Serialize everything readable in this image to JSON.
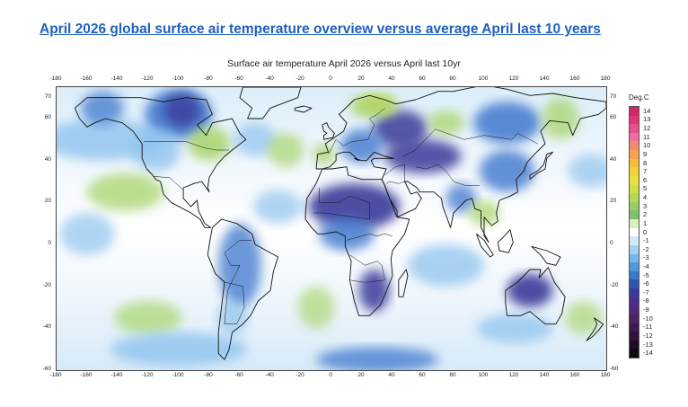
{
  "page_title": "April 2026 global surface air temperature overview versus average April last 10 years",
  "map": {
    "title": "Surface air temperature April 2026 versus April last 10yr",
    "lon_ticks": [
      "-180",
      "-160",
      "-140",
      "-120",
      "-100",
      "-80",
      "-60",
      "-40",
      "-20",
      "0",
      "20",
      "40",
      "60",
      "80",
      "100",
      "120",
      "140",
      "160",
      "180"
    ],
    "lat_ticks": [
      "70",
      "60",
      "40",
      "20",
      "0",
      "-20",
      "-40",
      "-60"
    ],
    "lat_values": [
      70,
      60,
      40,
      20,
      0,
      -20,
      -40,
      -60
    ],
    "lon_range": [
      -180,
      180
    ],
    "lat_range": [
      -60,
      75
    ],
    "colors": {
      "strong_cold": "#3a3a9a",
      "cold": "#4a7fd0",
      "cool": "#8fc3ee",
      "neutral": "#ffffff",
      "warm": "#a8d46a",
      "hot": "#e2e34a",
      "coast": "#111111"
    }
  },
  "legend": {
    "title": "Deg.C",
    "labels": [
      "14",
      "13",
      "12",
      "11",
      "10",
      "9",
      "8",
      "7",
      "6",
      "5",
      "4",
      "3",
      "2",
      "1",
      "0",
      "-1",
      "-2",
      "-3",
      "-4",
      "-5",
      "-6",
      "-7",
      "-8",
      "-9",
      "-10",
      "-11",
      "-12",
      "-13",
      "-14"
    ],
    "colors": [
      "#d6246e",
      "#e0337a",
      "#e8508c",
      "#ef6ea0",
      "#f28a6c",
      "#f5a34c",
      "#f7bd3a",
      "#f3d33a",
      "#e7e23d",
      "#cfe048",
      "#b5d856",
      "#9ccd62",
      "#7fc06e",
      "#dcefc0",
      "#ffffff",
      "#d4e9f7",
      "#a6d1f0",
      "#74b6e8",
      "#4f9ada",
      "#3a78c8",
      "#3055b0",
      "#3a3a9a",
      "#4a2e8c",
      "#532878",
      "#4e2163",
      "#3f1a4f",
      "#2e1438",
      "#1e0e24",
      "#0e0a12"
    ]
  }
}
